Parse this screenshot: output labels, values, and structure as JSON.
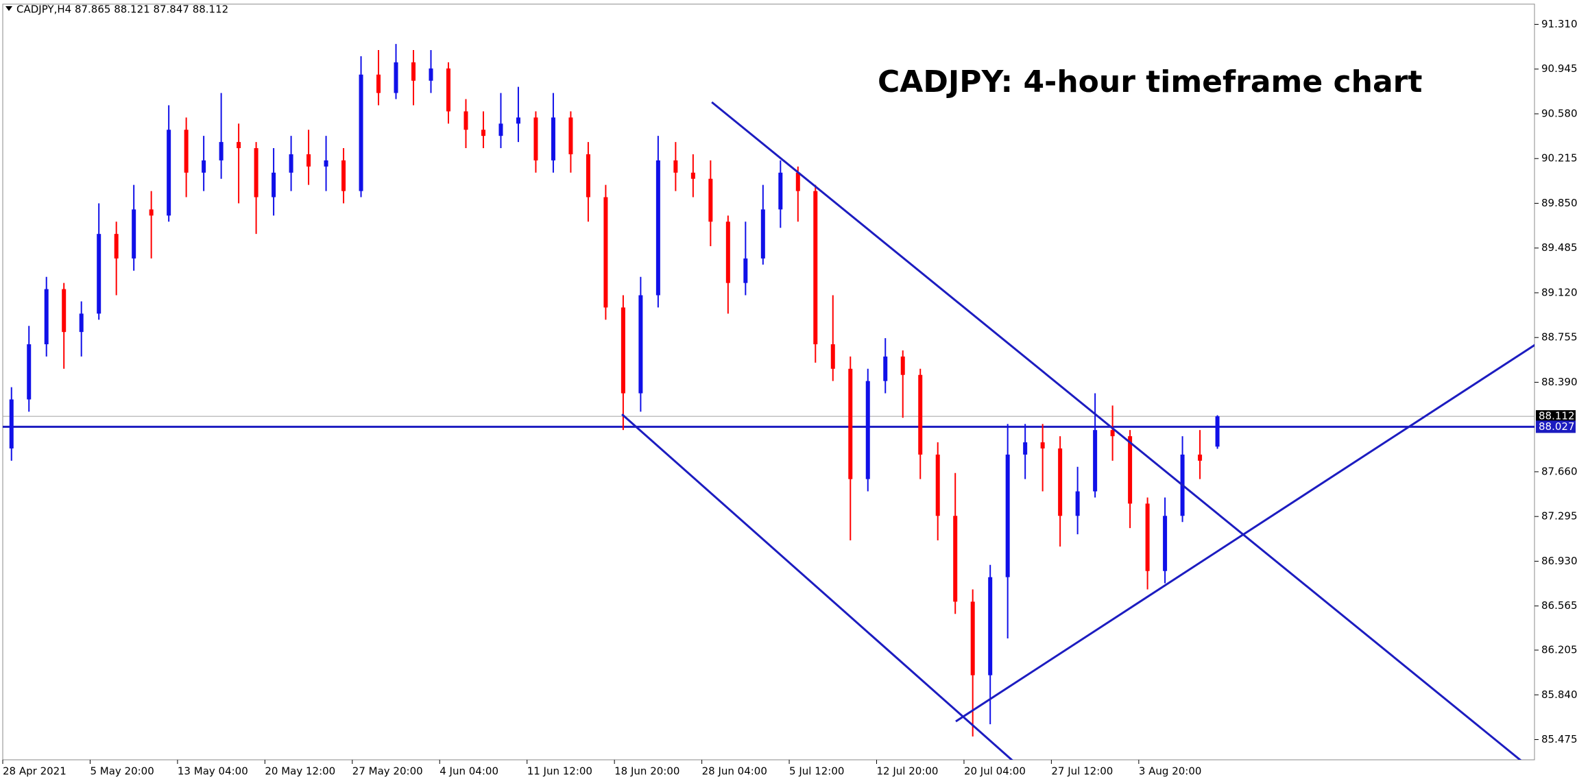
{
  "chart_data": {
    "type": "candlestick",
    "header": "CADJPY,H4  87.865 88.121 87.847 88.112",
    "title": "CADJPY: 4-hour timeframe chart",
    "up_color": "#1010e8",
    "down_color": "#ff0000",
    "line_color": "#1c1cc0",
    "categories": [
      "28 Apr 2021",
      null,
      null,
      null,
      null,
      "5 May 20:00",
      null,
      null,
      null,
      null,
      "13 May 04:00",
      null,
      null,
      null,
      null,
      "20 May 12:00",
      null,
      null,
      null,
      null,
      "27 May 20:00",
      null,
      null,
      null,
      null,
      "4 Jun 04:00",
      null,
      null,
      null,
      null,
      "11 Jun 12:00",
      null,
      null,
      null,
      null,
      "18 Jun 20:00",
      null,
      null,
      null,
      null,
      "28 Jun 04:00",
      null,
      null,
      null,
      null,
      "5 Jul 12:00",
      null,
      null,
      null,
      null,
      "12 Jul 20:00",
      null,
      null,
      null,
      null,
      "20 Jul 04:00",
      null,
      null,
      null,
      null,
      "27 Jul 12:00",
      null,
      null,
      null,
      null,
      "3 Aug 20:00",
      null,
      null,
      null,
      null
    ],
    "open": [
      87.85,
      88.25,
      88.7,
      89.15,
      88.8,
      88.95,
      89.6,
      89.4,
      89.8,
      89.75,
      90.45,
      90.1,
      90.2,
      90.35,
      90.3,
      89.9,
      90.1,
      90.25,
      90.15,
      90.2,
      89.95,
      90.9,
      90.75,
      91.0,
      90.85,
      90.95,
      90.6,
      90.45,
      90.4,
      90.5,
      90.55,
      90.2,
      90.55,
      90.25,
      89.9,
      89.0,
      88.3,
      89.1,
      90.2,
      90.1,
      90.05,
      89.7,
      89.2,
      89.4,
      89.8,
      90.1,
      89.95,
      88.7,
      88.5,
      87.6,
      88.4,
      88.6,
      88.45,
      87.8,
      87.3,
      86.6,
      86.0,
      86.8,
      87.8,
      87.9,
      87.85,
      87.3,
      87.5,
      88.0,
      87.95,
      87.4,
      86.85,
      87.3,
      87.8,
      87.865
    ],
    "high": [
      88.35,
      88.85,
      89.25,
      89.2,
      89.05,
      89.85,
      89.7,
      90.0,
      89.95,
      90.65,
      90.55,
      90.4,
      90.75,
      90.5,
      90.35,
      90.3,
      90.4,
      90.45,
      90.4,
      90.3,
      91.05,
      91.1,
      91.15,
      91.1,
      91.1,
      91.0,
      90.7,
      90.6,
      90.75,
      90.8,
      90.6,
      90.75,
      90.6,
      90.35,
      90.0,
      89.1,
      89.25,
      90.4,
      90.35,
      90.25,
      90.2,
      89.75,
      89.7,
      90.0,
      90.2,
      90.15,
      90.0,
      89.1,
      88.6,
      88.5,
      88.75,
      88.65,
      88.5,
      87.9,
      87.65,
      86.7,
      86.9,
      88.05,
      88.05,
      88.05,
      87.95,
      87.7,
      88.3,
      88.2,
      88.0,
      87.45,
      87.45,
      87.95,
      88.0,
      88.121
    ],
    "low": [
      87.75,
      88.15,
      88.6,
      88.5,
      88.6,
      88.9,
      89.1,
      89.3,
      89.4,
      89.7,
      89.9,
      89.95,
      90.05,
      89.85,
      89.6,
      89.75,
      89.95,
      90.0,
      89.95,
      89.85,
      89.9,
      90.65,
      90.7,
      90.65,
      90.75,
      90.5,
      90.3,
      90.3,
      90.3,
      90.35,
      90.1,
      90.1,
      90.1,
      89.7,
      88.9,
      88.0,
      88.15,
      89.0,
      89.95,
      89.9,
      89.5,
      88.95,
      89.1,
      89.35,
      89.65,
      89.7,
      88.55,
      88.4,
      87.1,
      87.5,
      88.3,
      88.1,
      87.6,
      87.1,
      86.5,
      85.5,
      85.6,
      86.3,
      87.6,
      87.5,
      87.05,
      87.15,
      87.45,
      87.75,
      87.2,
      86.7,
      86.75,
      87.25,
      87.6,
      87.847
    ],
    "close": [
      88.25,
      88.7,
      89.15,
      88.8,
      88.95,
      89.6,
      89.4,
      89.8,
      89.75,
      90.45,
      90.1,
      90.2,
      90.35,
      90.3,
      89.9,
      90.1,
      90.25,
      90.15,
      90.2,
      89.95,
      90.9,
      90.75,
      91.0,
      90.85,
      90.95,
      90.6,
      90.45,
      90.4,
      90.5,
      90.55,
      90.2,
      90.55,
      90.25,
      89.9,
      89.0,
      88.3,
      89.1,
      90.2,
      90.1,
      90.05,
      89.7,
      89.2,
      89.4,
      89.8,
      90.1,
      89.95,
      88.7,
      88.5,
      87.6,
      88.4,
      88.6,
      88.45,
      87.8,
      87.3,
      86.6,
      86.0,
      86.8,
      87.8,
      87.9,
      87.85,
      87.3,
      87.5,
      88.0,
      87.95,
      87.4,
      86.85,
      87.3,
      87.8,
      87.75,
      88.112
    ],
    "ylim": [
      85.31,
      91.475
    ],
    "yticks": [
      {
        "value": 91.31,
        "label": "91.310"
      },
      90.945,
      {
        "value": 90.58,
        "label": "90.580"
      },
      90.215,
      {
        "value": 89.85,
        "label": "89.850"
      },
      89.485,
      {
        "value": 89.12,
        "label": "89.120"
      },
      88.755,
      {
        "value": 88.39,
        "label": "88.390"
      },
      {
        "value": 87.66,
        "label": "87.660"
      },
      87.295,
      {
        "value": 86.93,
        "label": "86.930"
      },
      86.565,
      86.205,
      {
        "value": 85.84,
        "label": "85.840"
      },
      85.475
    ],
    "hline": {
      "value": 88.027,
      "color": "#1c1cc0"
    },
    "trendlines": [
      {
        "x": [
          40.07,
          86.6
        ],
        "y": [
          90.675,
          85.277
        ]
      },
      {
        "x": [
          34.93,
          57.49
        ],
        "y": [
          88.129,
          85.277
        ]
      },
      {
        "x": [
          54.03,
          87.2
        ],
        "y": [
          85.623,
          88.698
        ]
      }
    ]
  }
}
